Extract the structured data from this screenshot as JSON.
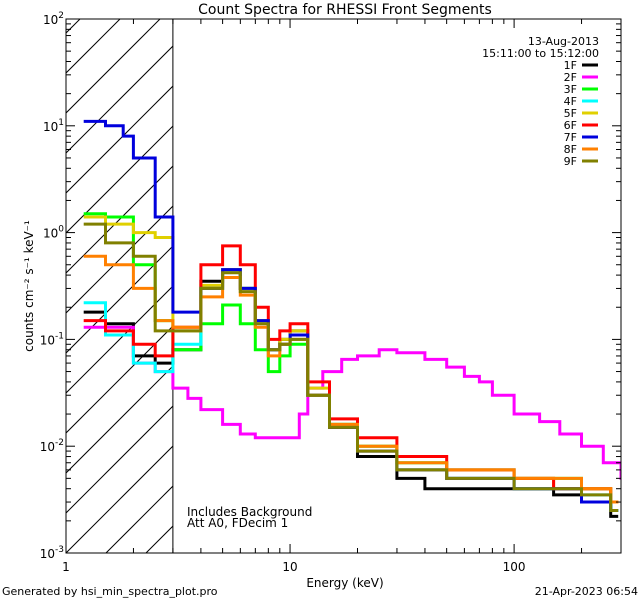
{
  "chart_data": {
    "type": "line",
    "title": "Count Spectra for RHESSI Front Segments",
    "xlabel": "Energy (keV)",
    "ylabel": "counts cm⁻² s⁻¹ keV⁻¹",
    "xscale": "log",
    "yscale": "log",
    "xlim": [
      1,
      300
    ],
    "ylim": [
      0.001,
      100
    ],
    "x_ticks": [
      {
        "value": 1,
        "label": "1"
      },
      {
        "value": 10,
        "label": "10"
      },
      {
        "value": 100,
        "label": "100"
      }
    ],
    "y_ticks": [
      {
        "value": 0.001,
        "base": "10",
        "exp": "-3"
      },
      {
        "value": 0.01,
        "base": "10",
        "exp": "-2"
      },
      {
        "value": 0.1,
        "base": "10",
        "exp": "-1"
      },
      {
        "value": 1,
        "base": "10",
        "exp": "0"
      },
      {
        "value": 10,
        "base": "10",
        "exp": "1"
      },
      {
        "value": 100,
        "base": "10",
        "exp": "2"
      }
    ],
    "hatched_region": [
      1,
      3
    ],
    "legend_header": [
      "13-Aug-2013",
      "15:11:00 to 15:12:00"
    ],
    "legend_position": "top-right",
    "annotations": [
      "Includes Background",
      "Att A0, FDecim 1"
    ],
    "series": [
      {
        "name": "1F",
        "color": "#000000",
        "points": [
          [
            1.2,
            0.18
          ],
          [
            1.5,
            0.14
          ],
          [
            2,
            0.07
          ],
          [
            2.5,
            0.06
          ],
          [
            3,
            0.08
          ],
          [
            4,
            0.35
          ],
          [
            5,
            0.45
          ],
          [
            6,
            0.3
          ],
          [
            7,
            0.15
          ],
          [
            8,
            0.08
          ],
          [
            9,
            0.1
          ],
          [
            10,
            0.12
          ],
          [
            12,
            0.03
          ],
          [
            15,
            0.015
          ],
          [
            20,
            0.008
          ],
          [
            30,
            0.005
          ],
          [
            40,
            0.004
          ],
          [
            60,
            0.004
          ],
          [
            100,
            0.004
          ],
          [
            150,
            0.0035
          ],
          [
            200,
            0.003
          ],
          [
            270,
            0.0022
          ]
        ]
      },
      {
        "name": "2F",
        "color": "#ff00ff",
        "points": [
          [
            1.2,
            0.13
          ],
          [
            1.5,
            0.13
          ],
          [
            2,
            0.06
          ],
          [
            2.5,
            0.05
          ],
          [
            3,
            0.035
          ],
          [
            3.5,
            0.028
          ],
          [
            4,
            0.022
          ],
          [
            5,
            0.016
          ],
          [
            6,
            0.013
          ],
          [
            7,
            0.012
          ],
          [
            8,
            0.012
          ],
          [
            9,
            0.012
          ],
          [
            10,
            0.012
          ],
          [
            11,
            0.02
          ],
          [
            12,
            0.035
          ],
          [
            14,
            0.05
          ],
          [
            17,
            0.065
          ],
          [
            20,
            0.07
          ],
          [
            25,
            0.08
          ],
          [
            30,
            0.075
          ],
          [
            40,
            0.065
          ],
          [
            50,
            0.055
          ],
          [
            60,
            0.045
          ],
          [
            70,
            0.04
          ],
          [
            80,
            0.03
          ],
          [
            100,
            0.02
          ],
          [
            130,
            0.017
          ],
          [
            160,
            0.013
          ],
          [
            200,
            0.01
          ],
          [
            250,
            0.007
          ],
          [
            300,
            0.005
          ]
        ]
      },
      {
        "name": "3F",
        "color": "#00ff00",
        "points": [
          [
            1.2,
            1.5
          ],
          [
            1.5,
            1.4
          ],
          [
            2,
            0.5
          ],
          [
            2.5,
            0.15
          ],
          [
            3,
            0.08
          ],
          [
            3.5,
            0.08
          ],
          [
            4,
            0.14
          ],
          [
            5,
            0.21
          ],
          [
            6,
            0.14
          ],
          [
            7,
            0.08
          ],
          [
            8,
            0.05
          ],
          [
            9,
            0.07
          ],
          [
            10,
            0.09
          ],
          [
            12,
            0.03
          ],
          [
            15,
            0.016
          ],
          [
            20,
            0.01
          ],
          [
            30,
            0.007
          ],
          [
            50,
            0.006
          ],
          [
            100,
            0.005
          ],
          [
            150,
            0.005
          ],
          [
            200,
            0.004
          ],
          [
            270,
            0.0025
          ]
        ]
      },
      {
        "name": "4F",
        "color": "#00ffff",
        "points": [
          [
            1.2,
            0.22
          ],
          [
            1.5,
            0.11
          ],
          [
            2,
            0.06
          ],
          [
            2.5,
            0.05
          ],
          [
            3,
            0.09
          ],
          [
            4,
            0.3
          ],
          [
            5,
            0.45
          ],
          [
            6,
            0.3
          ],
          [
            7,
            0.15
          ],
          [
            8,
            0.08
          ],
          [
            9,
            0.09
          ],
          [
            10,
            0.11
          ],
          [
            12,
            0.03
          ],
          [
            15,
            0.016
          ],
          [
            20,
            0.01
          ],
          [
            30,
            0.006
          ],
          [
            50,
            0.005
          ],
          [
            100,
            0.004
          ],
          [
            150,
            0.004
          ],
          [
            200,
            0.0035
          ],
          [
            270,
            0.0025
          ]
        ]
      },
      {
        "name": "5F",
        "color": "#e0d000",
        "points": [
          [
            1.2,
            1.4
          ],
          [
            1.5,
            1.2
          ],
          [
            2,
            1.0
          ],
          [
            2.5,
            0.9
          ],
          [
            3,
            0.12
          ],
          [
            4,
            0.32
          ],
          [
            5,
            0.45
          ],
          [
            6,
            0.3
          ],
          [
            7,
            0.15
          ],
          [
            8,
            0.08
          ],
          [
            9,
            0.1
          ],
          [
            10,
            0.12
          ],
          [
            12,
            0.035
          ],
          [
            15,
            0.016
          ],
          [
            20,
            0.01
          ],
          [
            30,
            0.006
          ],
          [
            50,
            0.005
          ],
          [
            100,
            0.005
          ],
          [
            150,
            0.004
          ],
          [
            200,
            0.004
          ],
          [
            270,
            0.003
          ]
        ]
      },
      {
        "name": "6F",
        "color": "#ff0000",
        "points": [
          [
            1.2,
            0.15
          ],
          [
            1.5,
            0.12
          ],
          [
            2,
            0.09
          ],
          [
            2.5,
            0.07
          ],
          [
            3,
            0.13
          ],
          [
            4,
            0.5
          ],
          [
            5,
            0.75
          ],
          [
            6,
            0.5
          ],
          [
            7,
            0.2
          ],
          [
            8,
            0.1
          ],
          [
            9,
            0.12
          ],
          [
            10,
            0.14
          ],
          [
            12,
            0.04
          ],
          [
            15,
            0.018
          ],
          [
            20,
            0.012
          ],
          [
            30,
            0.008
          ],
          [
            50,
            0.006
          ],
          [
            100,
            0.005
          ],
          [
            150,
            0.004
          ],
          [
            200,
            0.004
          ],
          [
            270,
            0.003
          ]
        ]
      },
      {
        "name": "7F",
        "color": "#0000dd",
        "points": [
          [
            1.2,
            11
          ],
          [
            1.5,
            10
          ],
          [
            1.8,
            8
          ],
          [
            2,
            5
          ],
          [
            2.5,
            1.4
          ],
          [
            3,
            0.18
          ],
          [
            4,
            0.3
          ],
          [
            5,
            0.45
          ],
          [
            6,
            0.3
          ],
          [
            7,
            0.15
          ],
          [
            8,
            0.08
          ],
          [
            9,
            0.09
          ],
          [
            10,
            0.11
          ],
          [
            12,
            0.03
          ],
          [
            15,
            0.015
          ],
          [
            20,
            0.009
          ],
          [
            30,
            0.006
          ],
          [
            50,
            0.005
          ],
          [
            100,
            0.004
          ],
          [
            150,
            0.004
          ],
          [
            200,
            0.003
          ],
          [
            270,
            0.0025
          ]
        ]
      },
      {
        "name": "8F",
        "color": "#ff8000",
        "points": [
          [
            1.2,
            0.6
          ],
          [
            1.5,
            0.5
          ],
          [
            2,
            0.3
          ],
          [
            2.5,
            0.15
          ],
          [
            3,
            0.13
          ],
          [
            4,
            0.25
          ],
          [
            5,
            0.38
          ],
          [
            6,
            0.26
          ],
          [
            7,
            0.13
          ],
          [
            8,
            0.07
          ],
          [
            9,
            0.09
          ],
          [
            10,
            0.1
          ],
          [
            12,
            0.03
          ],
          [
            15,
            0.016
          ],
          [
            20,
            0.01
          ],
          [
            30,
            0.007
          ],
          [
            50,
            0.006
          ],
          [
            100,
            0.005
          ],
          [
            150,
            0.005
          ],
          [
            200,
            0.004
          ],
          [
            270,
            0.003
          ]
        ]
      },
      {
        "name": "9F",
        "color": "#808000",
        "points": [
          [
            1.2,
            1.2
          ],
          [
            1.5,
            0.8
          ],
          [
            2,
            0.6
          ],
          [
            2.5,
            0.12
          ],
          [
            3,
            0.12
          ],
          [
            4,
            0.3
          ],
          [
            5,
            0.42
          ],
          [
            6,
            0.28
          ],
          [
            7,
            0.14
          ],
          [
            8,
            0.08
          ],
          [
            9,
            0.09
          ],
          [
            10,
            0.1
          ],
          [
            12,
            0.03
          ],
          [
            15,
            0.015
          ],
          [
            20,
            0.009
          ],
          [
            30,
            0.006
          ],
          [
            50,
            0.005
          ],
          [
            100,
            0.004
          ],
          [
            150,
            0.004
          ],
          [
            200,
            0.0035
          ],
          [
            270,
            0.0025
          ]
        ]
      }
    ]
  },
  "footer": {
    "left": "Generated by hsi_min_spectra_plot.pro",
    "right": "21-Apr-2023 06:54"
  }
}
